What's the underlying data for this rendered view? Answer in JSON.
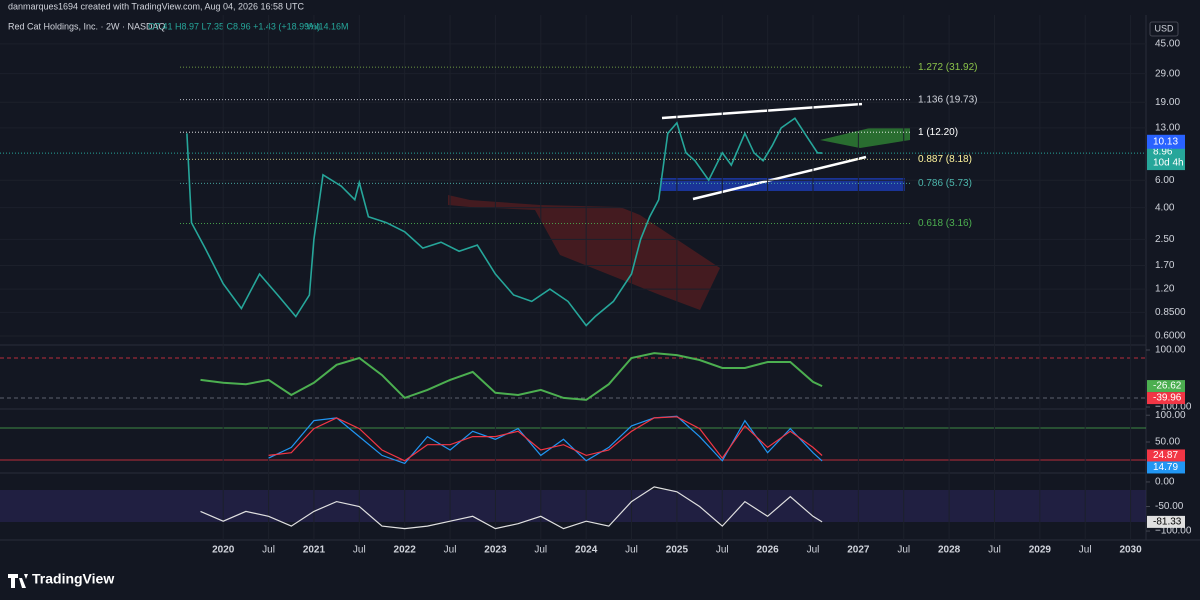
{
  "chart_data": {
    "type": "line",
    "attribution": "danmarques1694 created with TradingView.com, Aug 04, 2026 16:58 UTC",
    "title": "Red Cat Holdings, Inc. · 2W · NASDAQ",
    "ohlc": "O7.41 H8.97 L7.35 C8.96 +1.43 (+18.99%)",
    "volume": "Vol14.16M",
    "currency": "USD",
    "brand": "TradingView",
    "log_scale": true,
    "color": "#26a69a",
    "x": [
      2019.6,
      2019.65,
      2019.8,
      2020.0,
      2020.2,
      2020.4,
      2020.6,
      2020.8,
      2020.95,
      2021.0,
      2021.1,
      2021.3,
      2021.45,
      2021.5,
      2021.6,
      2021.8,
      2022.0,
      2022.2,
      2022.4,
      2022.6,
      2022.8,
      2023.0,
      2023.2,
      2023.4,
      2023.6,
      2023.8,
      2024.0,
      2024.1,
      2024.3,
      2024.5,
      2024.6,
      2024.7,
      2024.8,
      2024.9,
      2025.0,
      2025.1,
      2025.2,
      2025.35,
      2025.5,
      2025.6,
      2025.75,
      2025.85,
      2025.95,
      2026.05,
      2026.15,
      2026.3,
      2026.45,
      2026.55,
      2026.6
    ],
    "values": [
      12,
      3.2,
      2.2,
      1.3,
      0.9,
      1.5,
      1.1,
      0.8,
      1.1,
      2.5,
      6.5,
      5.5,
      4.5,
      5.8,
      3.5,
      3.2,
      2.8,
      2.2,
      2.4,
      2.1,
      2.3,
      1.5,
      1.1,
      1.0,
      1.2,
      1.0,
      0.7,
      0.8,
      1.0,
      1.5,
      2.5,
      3.5,
      4.5,
      12,
      14,
      9,
      8,
      6,
      9,
      7.5,
      12,
      9,
      8,
      10,
      13,
      15,
      11,
      9,
      8.96
    ],
    "xlim": [
      2017.54,
      2030.17
    ],
    "xticks": [
      {
        "value": 2020,
        "label": "2020"
      },
      {
        "value": 2020.5,
        "label": "Jul"
      },
      {
        "value": 2021,
        "label": "2021"
      },
      {
        "value": 2021.5,
        "label": "Jul"
      },
      {
        "value": 2022,
        "label": "2022"
      },
      {
        "value": 2022.5,
        "label": "Jul"
      },
      {
        "value": 2023,
        "label": "2023"
      },
      {
        "value": 2023.5,
        "label": "Jul"
      },
      {
        "value": 2024,
        "label": "2024"
      },
      {
        "value": 2024.5,
        "label": "Jul"
      },
      {
        "value": 2025,
        "label": "2025"
      },
      {
        "value": 2025.5,
        "label": "Jul"
      },
      {
        "value": 2026,
        "label": "2026"
      },
      {
        "value": 2026.5,
        "label": "Jul"
      },
      {
        "value": 2027,
        "label": "2027"
      },
      {
        "value": 2027.5,
        "label": "Jul"
      },
      {
        "value": 2028,
        "label": "2028"
      },
      {
        "value": 2028.5,
        "label": "Jul"
      },
      {
        "value": 2029,
        "label": "2029"
      },
      {
        "value": 2029.5,
        "label": "Jul"
      },
      {
        "value": 2030,
        "label": "2030"
      }
    ],
    "ylim": [
      0.525,
      69
    ],
    "yticks": [
      {
        "value": 45,
        "label": "45.00"
      },
      {
        "value": 29,
        "label": "29.00"
      },
      {
        "value": 19,
        "label": "19.00"
      },
      {
        "value": 13,
        "label": "13.00"
      },
      {
        "value": 6,
        "label": "6.00"
      },
      {
        "value": 4,
        "label": "4.00"
      },
      {
        "value": 2.5,
        "label": "2.50"
      },
      {
        "value": 1.7,
        "label": "1.70"
      },
      {
        "value": 1.2,
        "label": "1.20"
      },
      {
        "value": 0.85,
        "label": "0.8500"
      },
      {
        "value": 0.6,
        "label": "0.6000"
      }
    ],
    "fib_levels": [
      {
        "value": 31.92,
        "label": "1.272 (31.92)",
        "color": "#8bc34a"
      },
      {
        "value": 19.73,
        "label": "1.136 (19.73)",
        "color": "#d1d4dc"
      },
      {
        "value": 12.2,
        "label": "1 (12.20)",
        "color": "#ffffff"
      },
      {
        "value": 8.18,
        "label": "0.887 (8.18)",
        "color": "#fff59d"
      },
      {
        "value": 5.73,
        "label": "0.786 (5.73)",
        "color": "#4db6ac"
      },
      {
        "value": 3.16,
        "label": "0.618 (3.16)",
        "color": "#4caf50"
      }
    ],
    "price_badges": [
      {
        "value": 10.13,
        "label": "10.13",
        "color": "#2962ff"
      }
    ],
    "countdown": "10d 4h",
    "indicator_x": [
      2019.75,
      2020.0,
      2020.25,
      2020.5,
      2020.75,
      2021.0,
      2021.25,
      2021.5,
      2021.75,
      2022.0,
      2022.25,
      2022.5,
      2022.75,
      2023.0,
      2023.25,
      2023.5,
      2023.75,
      2024.0,
      2024.25,
      2024.5,
      2024.75,
      2025.0,
      2025.25,
      2025.5,
      2025.75,
      2026.0,
      2026.25,
      2026.5,
      2026.6
    ],
    "indicators": [
      {
        "ylim": [
          -100,
          100
        ],
        "yticks": [
          {
            "value": 100,
            "label": "100.00"
          },
          {
            "value": -100,
            "label": "−100.00"
          }
        ],
        "series": [
          {
            "color": "#4caf50",
            "values": [
              -5,
              -15,
              -20,
              -5,
              -58,
              -15,
              48,
              72,
              12,
              -68,
              -40,
              -5,
              23,
              -50,
              -58,
              -40,
              -68,
              -75,
              -20,
              72,
              89,
              82,
              65,
              37,
              37,
              58,
              58,
              -12,
              -26.62
            ]
          }
        ],
        "badges": [
          {
            "value": -39.96,
            "label": "-39.96",
            "color": "#f23645"
          }
        ]
      },
      {
        "ylim": [
          -6,
          106
        ],
        "yticks": [
          {
            "value": 100,
            "label": "100.00"
          },
          {
            "value": 50,
            "label": "50.00"
          }
        ],
        "series": [
          {
            "color": "#2196f3",
            "values": [
              null,
              null,
              null,
              20,
              40,
              90,
              95,
              60,
              25,
              10,
              60,
              35,
              70,
              55,
              75,
              25,
              55,
              15,
              40,
              80,
              95,
              98,
              60,
              15,
              90,
              30,
              75,
              30,
              14.79
            ]
          },
          {
            "color": "#f23645",
            "values": [
              null,
              null,
              null,
              25,
              30,
              75,
              95,
              75,
              35,
              15,
              45,
              45,
              60,
              60,
              70,
              35,
              45,
              25,
              35,
              70,
              95,
              97,
              75,
              20,
              80,
              40,
              70,
              40,
              24.87
            ]
          }
        ]
      },
      {
        "ylim": [
          -106,
          6
        ],
        "yticks": [
          {
            "value": 0,
            "label": "0.00"
          },
          {
            "value": -50,
            "label": "-50.00"
          },
          {
            "value": -100,
            "label": "−100.00"
          }
        ],
        "series": [
          {
            "color": "#e0e0e0",
            "values": [
              -60,
              -80,
              -60,
              -70,
              -90,
              -60,
              -40,
              -50,
              -90,
              -95,
              -90,
              -80,
              -70,
              -95,
              -85,
              -70,
              -95,
              -80,
              -90,
              -40,
              -10,
              -20,
              -50,
              -90,
              -40,
              -70,
              -30,
              -70,
              -81.33
            ]
          }
        ]
      }
    ]
  }
}
